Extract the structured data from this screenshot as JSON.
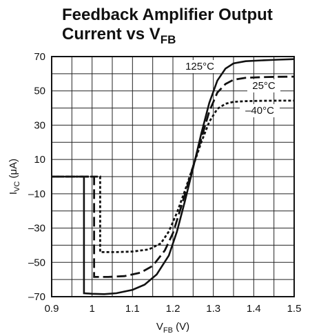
{
  "chart_data": {
    "type": "line",
    "title_line1": "Feedback Amplifier Output",
    "title_line2_prefix": "Current vs V",
    "title_line2_sub": "FB",
    "ylabel_main": "I",
    "ylabel_sub": "VC",
    "ylabel_unit": " (μA)",
    "xlabel_main": "V",
    "xlabel_sub": "FB",
    "xlabel_unit": " (V)",
    "xlim": [
      0.9,
      1.5
    ],
    "ylim": [
      -70,
      70
    ],
    "x_ticks": [
      0.9,
      1.0,
      1.1,
      1.2,
      1.3,
      1.4,
      1.5
    ],
    "x_tick_labels": [
      "0.9",
      "1",
      "1.1",
      "1.2",
      "1.3",
      "1.4",
      "1.5"
    ],
    "y_ticks": [
      70,
      50,
      30,
      10,
      -10,
      -30,
      -50,
      -70
    ],
    "y_tick_labels": [
      "70",
      "50",
      "30",
      "10",
      "–10",
      "–30",
      "–50",
      "–70"
    ],
    "grid": true,
    "series": [
      {
        "name": "125°C",
        "style": "solid",
        "points": [
          [
            0.9,
            0
          ],
          [
            0.98,
            0
          ],
          [
            0.98,
            -68
          ],
          [
            1.0,
            -68.3
          ],
          [
            1.03,
            -68.5
          ],
          [
            1.06,
            -68
          ],
          [
            1.1,
            -66
          ],
          [
            1.13,
            -63
          ],
          [
            1.16,
            -57
          ],
          [
            1.19,
            -46
          ],
          [
            1.21,
            -32
          ],
          [
            1.23,
            -14
          ],
          [
            1.25,
            5
          ],
          [
            1.27,
            25
          ],
          [
            1.29,
            43
          ],
          [
            1.31,
            56
          ],
          [
            1.33,
            63
          ],
          [
            1.35,
            66
          ],
          [
            1.38,
            67.3
          ],
          [
            1.42,
            67.8
          ],
          [
            1.46,
            68.2
          ],
          [
            1.5,
            68.5
          ]
        ]
      },
      {
        "name": "25°C",
        "style": "dashed",
        "points": [
          [
            0.9,
            0
          ],
          [
            1.005,
            0
          ],
          [
            1.005,
            -58.5
          ],
          [
            1.04,
            -58.5
          ],
          [
            1.08,
            -58
          ],
          [
            1.12,
            -56
          ],
          [
            1.15,
            -52
          ],
          [
            1.18,
            -43
          ],
          [
            1.2,
            -33
          ],
          [
            1.22,
            -18
          ],
          [
            1.24,
            -2
          ],
          [
            1.25,
            6
          ],
          [
            1.27,
            22
          ],
          [
            1.29,
            38
          ],
          [
            1.31,
            49
          ],
          [
            1.33,
            54
          ],
          [
            1.35,
            56.5
          ],
          [
            1.38,
            57.6
          ],
          [
            1.42,
            58
          ],
          [
            1.46,
            58.2
          ],
          [
            1.5,
            58.3
          ]
        ]
      },
      {
        "name": "–40°C",
        "style": "dotted",
        "points": [
          [
            0.9,
            0
          ],
          [
            1.02,
            0
          ],
          [
            1.02,
            -44
          ],
          [
            1.06,
            -44
          ],
          [
            1.1,
            -43.7
          ],
          [
            1.14,
            -42.5
          ],
          [
            1.17,
            -39
          ],
          [
            1.19,
            -32
          ],
          [
            1.21,
            -21
          ],
          [
            1.23,
            -8
          ],
          [
            1.25,
            6
          ],
          [
            1.27,
            20
          ],
          [
            1.29,
            32
          ],
          [
            1.31,
            39.5
          ],
          [
            1.33,
            42.5
          ],
          [
            1.35,
            43.6
          ],
          [
            1.38,
            44
          ],
          [
            1.42,
            44.2
          ],
          [
            1.46,
            44.3
          ],
          [
            1.5,
            44.3
          ]
        ]
      }
    ]
  }
}
